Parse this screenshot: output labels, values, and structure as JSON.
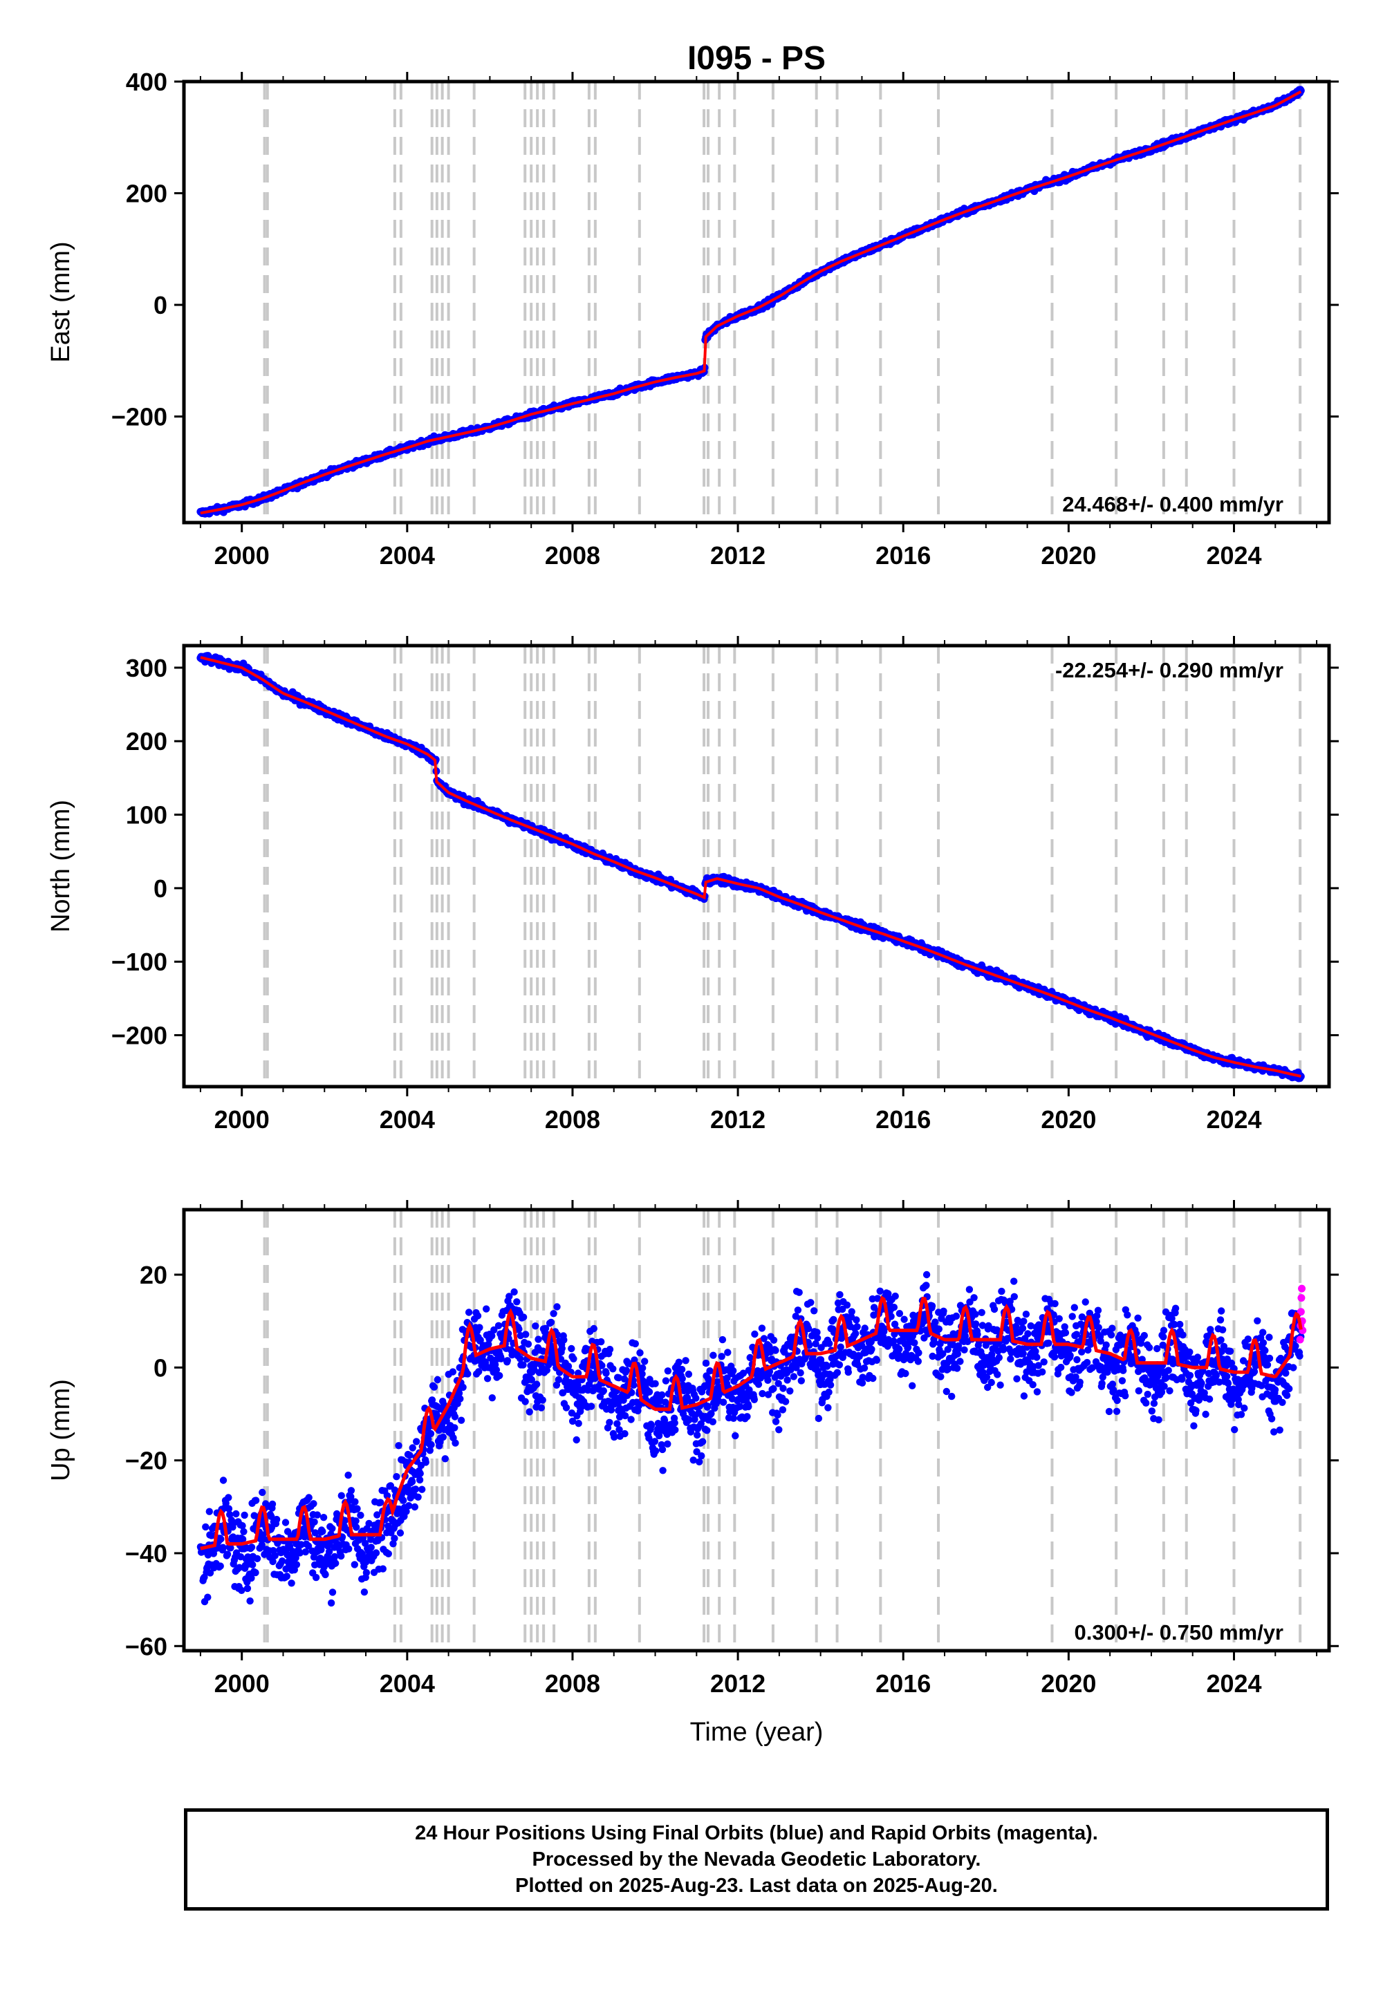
{
  "title": "I095 - PS",
  "xlabel": "Time (year)",
  "footer": {
    "line1": "24 Hour Positions Using Final Orbits (blue) and Rapid Orbits (magenta).",
    "line2": "Processed by the Nevada Geodetic Laboratory.",
    "line3": "Plotted on 2025-Aug-23. Last data on 2025-Aug-20."
  },
  "colors": {
    "final_orbits": "#0000ff",
    "rapid_orbits": "#ff00ff",
    "model": "#ff0000",
    "event_lines": "#c8c8c8"
  },
  "event_lines": [
    2000.55,
    2000.62,
    2003.7,
    2003.85,
    2004.6,
    2004.72,
    2004.85,
    2005.0,
    2005.62,
    2006.85,
    2007.0,
    2007.15,
    2007.3,
    2007.55,
    2008.4,
    2008.55,
    2009.62,
    2011.18,
    2011.28,
    2011.55,
    2011.92,
    2012.85,
    2013.9,
    2014.4,
    2015.45,
    2016.85,
    2019.6,
    2021.15,
    2022.3,
    2022.85,
    2024.0,
    2025.6
  ],
  "chart_data": [
    {
      "type": "scatter",
      "component": "east",
      "ylabel": "East (mm)",
      "rate_label": "24.468+/- 0.400 mm/yr",
      "rate_position": "bottom-right",
      "xlim": [
        1998.6,
        2026.3
      ],
      "ylim": [
        -390,
        400
      ],
      "xticks": [
        2000,
        2004,
        2008,
        2012,
        2016,
        2020,
        2024
      ],
      "xtick_labels": [
        "2000",
        "2004",
        "2008",
        "2012",
        "2016",
        "2020",
        "2024"
      ],
      "yticks": [
        -200,
        0,
        200,
        400
      ],
      "ytick_labels": [
        "−200",
        "0",
        "200",
        "400"
      ],
      "x": [
        1999.0,
        1999.5,
        2000.0,
        2000.5,
        2001.0,
        2001.5,
        2002.0,
        2002.5,
        2003.0,
        2003.5,
        2004.0,
        2004.5,
        2005.0,
        2005.5,
        2006.0,
        2006.5,
        2007.0,
        2007.5,
        2008.0,
        2008.5,
        2009.0,
        2009.5,
        2010.0,
        2010.5,
        2011.0,
        2011.2,
        2011.21,
        2011.5,
        2012.0,
        2012.5,
        2013.0,
        2013.5,
        2014.0,
        2014.5,
        2015.0,
        2015.5,
        2016.0,
        2016.5,
        2017.0,
        2017.5,
        2018.0,
        2018.5,
        2019.0,
        2019.5,
        2020.0,
        2020.5,
        2021.0,
        2021.5,
        2022.0,
        2022.5,
        2023.0,
        2023.5,
        2024.0,
        2024.5,
        2025.0,
        2025.62
      ],
      "values": [
        -373,
        -366,
        -358,
        -347,
        -333,
        -318,
        -304,
        -291,
        -279,
        -267,
        -256,
        -244,
        -236,
        -228,
        -219,
        -208,
        -196,
        -187,
        -177,
        -168,
        -159,
        -148,
        -138,
        -130,
        -123,
        -118,
        -58,
        -38,
        -20,
        -5,
        15,
        38,
        60,
        78,
        93,
        108,
        123,
        138,
        153,
        167,
        180,
        193,
        206,
        218,
        230,
        243,
        256,
        268,
        280,
        293,
        306,
        319,
        332,
        344,
        357,
        382
      ]
    },
    {
      "type": "scatter",
      "component": "north",
      "ylabel": "North (mm)",
      "rate_label": "-22.254+/- 0.290 mm/yr",
      "rate_position": "top-right",
      "xlim": [
        1998.6,
        2026.3
      ],
      "ylim": [
        -270,
        330
      ],
      "xticks": [
        2000,
        2004,
        2008,
        2012,
        2016,
        2020,
        2024
      ],
      "xtick_labels": [
        "2000",
        "2004",
        "2008",
        "2012",
        "2016",
        "2020",
        "2024"
      ],
      "yticks": [
        -200,
        -100,
        0,
        100,
        200,
        300
      ],
      "ytick_labels": [
        "−200",
        "−100",
        "0",
        "100",
        "200",
        "300"
      ],
      "x": [
        1999.0,
        1999.5,
        2000.0,
        2000.5,
        2001.0,
        2001.5,
        2002.0,
        2002.5,
        2003.0,
        2003.5,
        2004.0,
        2004.5,
        2004.7,
        2004.71,
        2005.0,
        2005.5,
        2006.0,
        2006.5,
        2007.0,
        2007.5,
        2008.0,
        2008.5,
        2009.0,
        2009.5,
        2010.0,
        2010.5,
        2011.0,
        2011.2,
        2011.21,
        2011.5,
        2012.0,
        2012.5,
        2013.0,
        2013.5,
        2014.0,
        2014.5,
        2015.0,
        2015.5,
        2016.0,
        2016.5,
        2017.0,
        2017.5,
        2018.0,
        2018.5,
        2019.0,
        2019.5,
        2020.0,
        2020.5,
        2021.0,
        2021.5,
        2022.0,
        2022.5,
        2023.0,
        2023.5,
        2024.0,
        2024.5,
        2025.0,
        2025.62
      ],
      "values": [
        314,
        307,
        300,
        284,
        265,
        254,
        242,
        230,
        218,
        206,
        196,
        182,
        173,
        145,
        130,
        117,
        105,
        93,
        82,
        71,
        60,
        47,
        36,
        24,
        14,
        3,
        -8,
        -13,
        8,
        13,
        6,
        0,
        -12,
        -22,
        -33,
        -43,
        -53,
        -62,
        -72,
        -82,
        -93,
        -104,
        -114,
        -124,
        -134,
        -144,
        -155,
        -166,
        -176,
        -187,
        -198,
        -209,
        -220,
        -230,
        -237,
        -243,
        -248,
        -256
      ]
    },
    {
      "type": "scatter",
      "component": "up",
      "ylabel": "Up (mm)",
      "rate_label": "0.300+/- 0.750 mm/yr",
      "rate_position": "bottom-right",
      "xlim": [
        1998.6,
        2026.3
      ],
      "ylim": [
        -61,
        34
      ],
      "xticks": [
        2000,
        2004,
        2008,
        2012,
        2016,
        2020,
        2024
      ],
      "xtick_labels": [
        "2000",
        "2004",
        "2008",
        "2012",
        "2016",
        "2020",
        "2024"
      ],
      "yticks": [
        -60,
        -40,
        -20,
        0,
        20
      ],
      "ytick_labels": [
        "−60",
        "−40",
        "−20",
        "0",
        "20"
      ],
      "x": [
        1999.0,
        1999.5,
        2000.0,
        2000.5,
        2001.0,
        2001.5,
        2002.0,
        2002.5,
        2003.0,
        2003.5,
        2003.75,
        2004.0,
        2004.5,
        2005.0,
        2005.5,
        2006.0,
        2006.5,
        2007.0,
        2007.5,
        2008.0,
        2008.5,
        2009.0,
        2009.5,
        2010.0,
        2010.5,
        2011.0,
        2011.5,
        2012.0,
        2012.5,
        2013.0,
        2013.5,
        2014.0,
        2014.5,
        2015.0,
        2015.5,
        2016.0,
        2016.5,
        2017.0,
        2017.5,
        2018.0,
        2018.5,
        2019.0,
        2019.5,
        2020.0,
        2020.5,
        2021.0,
        2021.5,
        2022.0,
        2022.5,
        2023.0,
        2023.5,
        2024.0,
        2024.5,
        2025.0,
        2025.62
      ],
      "values": [
        -39,
        -38,
        -38,
        -37,
        -37,
        -37,
        -37,
        -36,
        -36,
        -36,
        -28,
        -22,
        -16,
        -8,
        2,
        4,
        5,
        2,
        1,
        -2,
        -2,
        -4,
        -6,
        -9,
        -9,
        -8,
        -6,
        -4,
        -1,
        1,
        3,
        3,
        4,
        6,
        8,
        8,
        8,
        6,
        6,
        6,
        6,
        5,
        5,
        5,
        4,
        3,
        1,
        1,
        1,
        0,
        0,
        -1,
        -1,
        -2,
        6
      ],
      "rapid_orbits_x": [
        2025.6,
        2025.61,
        2025.62,
        2025.63,
        2025.64,
        2025.65,
        2025.66
      ],
      "rapid_orbits_values": [
        6,
        9,
        12,
        15,
        17,
        10,
        8
      ]
    }
  ]
}
